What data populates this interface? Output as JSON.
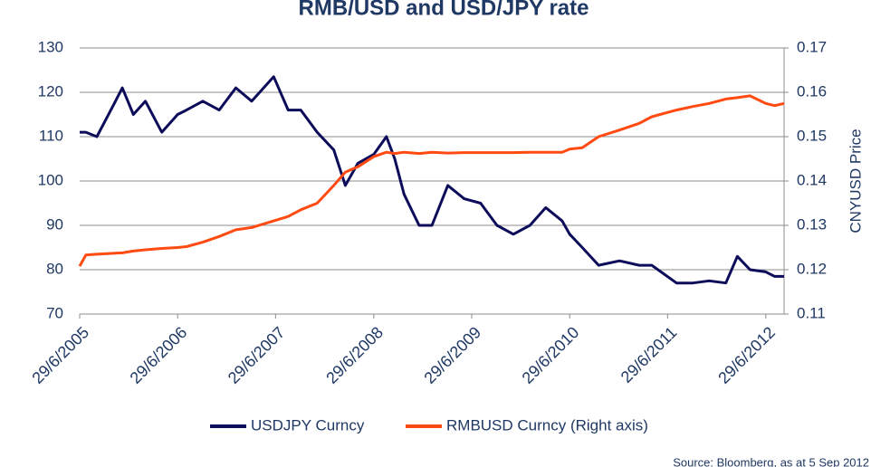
{
  "chart_data": {
    "type": "line",
    "title": "RMB/USD and USD/JPY rate",
    "y2_label": "CNYUSD Price",
    "source": "Source: Bloomberg, as at 5 Sep 2012",
    "x": [
      "2005-06-29",
      "2005-07-22",
      "2005-09-01",
      "2005-11-01",
      "2005-12-05",
      "2006-01-15",
      "2006-03-01",
      "2006-05-01",
      "2006-06-29",
      "2006-08-01",
      "2006-10-01",
      "2006-12-01",
      "2007-02-01",
      "2007-04-01",
      "2007-06-22",
      "2007-08-15",
      "2007-10-01",
      "2007-12-01",
      "2008-02-01",
      "2008-03-15",
      "2008-05-01",
      "2008-06-29",
      "2008-08-15",
      "2008-09-15",
      "2008-10-20",
      "2008-12-15",
      "2009-02-01",
      "2009-04-01",
      "2009-06-01",
      "2009-08-01",
      "2009-10-01",
      "2009-12-01",
      "2010-02-01",
      "2010-04-01",
      "2010-06-01",
      "2010-06-29",
      "2010-08-15",
      "2010-10-15",
      "2011-01-01",
      "2011-03-15",
      "2011-05-01",
      "2011-08-01",
      "2011-10-01",
      "2011-12-01",
      "2012-02-01",
      "2012-03-15",
      "2012-05-01",
      "2012-06-29",
      "2012-08-01",
      "2012-09-05"
    ],
    "xlim": [
      "2005-06-29",
      "2012-09-05"
    ],
    "xticks": [
      {
        "value": "2005-06-29",
        "label": "29/6/2005"
      },
      {
        "value": "2006-06-29",
        "label": "29/6/2006"
      },
      {
        "value": "2007-06-29",
        "label": "29/6/2007"
      },
      {
        "value": "2008-06-29",
        "label": "29/6/2008"
      },
      {
        "value": "2009-06-29",
        "label": "29/6/2009"
      },
      {
        "value": "2010-06-29",
        "label": "29/6/2010"
      },
      {
        "value": "2011-06-29",
        "label": "29/6/2011"
      },
      {
        "value": "2012-06-29",
        "label": "29/6/2012"
      }
    ],
    "ylim": [
      70,
      130
    ],
    "yticks": [
      70,
      80,
      90,
      100,
      110,
      120,
      130
    ],
    "y2lim": [
      0.11,
      0.17
    ],
    "y2ticks": [
      0.11,
      0.12,
      0.13,
      0.14,
      0.15,
      0.16,
      0.17
    ],
    "grid": true,
    "legend": "bottom",
    "series": [
      {
        "name": "USDJPY Curncy",
        "color": "#0c0c5a",
        "values": [
          111,
          111,
          110,
          117,
          121,
          115,
          118,
          111,
          115,
          116,
          118,
          116,
          121,
          118,
          123.5,
          116,
          116,
          111,
          107,
          99,
          104,
          106,
          110,
          105,
          97,
          90,
          90,
          99,
          96,
          95,
          90,
          88,
          90,
          94,
          91,
          88,
          85,
          81,
          82,
          81,
          81,
          77,
          77,
          77.5,
          77,
          83,
          80,
          79.5,
          78.5,
          78.5
        ]
      },
      {
        "name": "RMBUSD Curncy (Right axis)",
        "color": "#ff4a12",
        "axis": "y2",
        "values": [
          0.1208,
          0.1233,
          0.1235,
          0.1237,
          0.1238,
          0.1242,
          0.1245,
          0.1248,
          0.125,
          0.1252,
          0.1262,
          0.1275,
          0.129,
          0.1295,
          0.131,
          0.132,
          0.1335,
          0.135,
          0.139,
          0.142,
          0.1432,
          0.1455,
          0.1465,
          0.1462,
          0.1465,
          0.1462,
          0.1465,
          0.1463,
          0.1464,
          0.1464,
          0.1464,
          0.1464,
          0.1465,
          0.1465,
          0.1465,
          0.1472,
          0.1475,
          0.15,
          0.1515,
          0.153,
          0.1545,
          0.156,
          0.1568,
          0.1575,
          0.1585,
          0.1588,
          0.1592,
          0.1575,
          0.157,
          0.1575
        ]
      }
    ]
  }
}
